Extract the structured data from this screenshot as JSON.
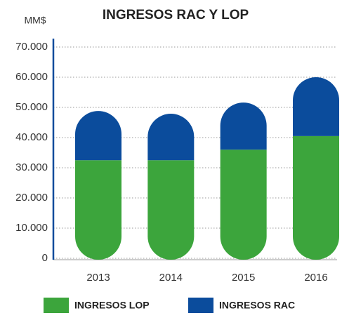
{
  "chart_data": {
    "type": "stacked_bar",
    "title": "INGRESOS RAC Y LOP",
    "y_label": "MM$",
    "categories": [
      "2013",
      "2014",
      "2015",
      "2016"
    ],
    "series": [
      {
        "name": "INGRESOS LOP",
        "color": "#3ca53c",
        "values": [
          32500,
          32500,
          36000,
          40500
        ]
      },
      {
        "name": "INGRESOS RAC",
        "color": "#0b4c9c",
        "values": [
          16300,
          15400,
          15600,
          19500
        ]
      }
    ],
    "ylim": [
      0,
      70000
    ],
    "yticks": [
      0,
      {
        "value": 10000,
        "label": "10.000"
      },
      {
        "value": 20000,
        "label": "20.000"
      },
      {
        "value": 30000,
        "label": "30.000"
      },
      {
        "value": 40000,
        "label": "40.000"
      },
      {
        "value": 50000,
        "label": "50.000"
      },
      {
        "value": 60000,
        "label": "60.000"
      },
      {
        "value": 70000,
        "label": "70.000"
      }
    ],
    "grid": true,
    "legend": "bottom"
  }
}
